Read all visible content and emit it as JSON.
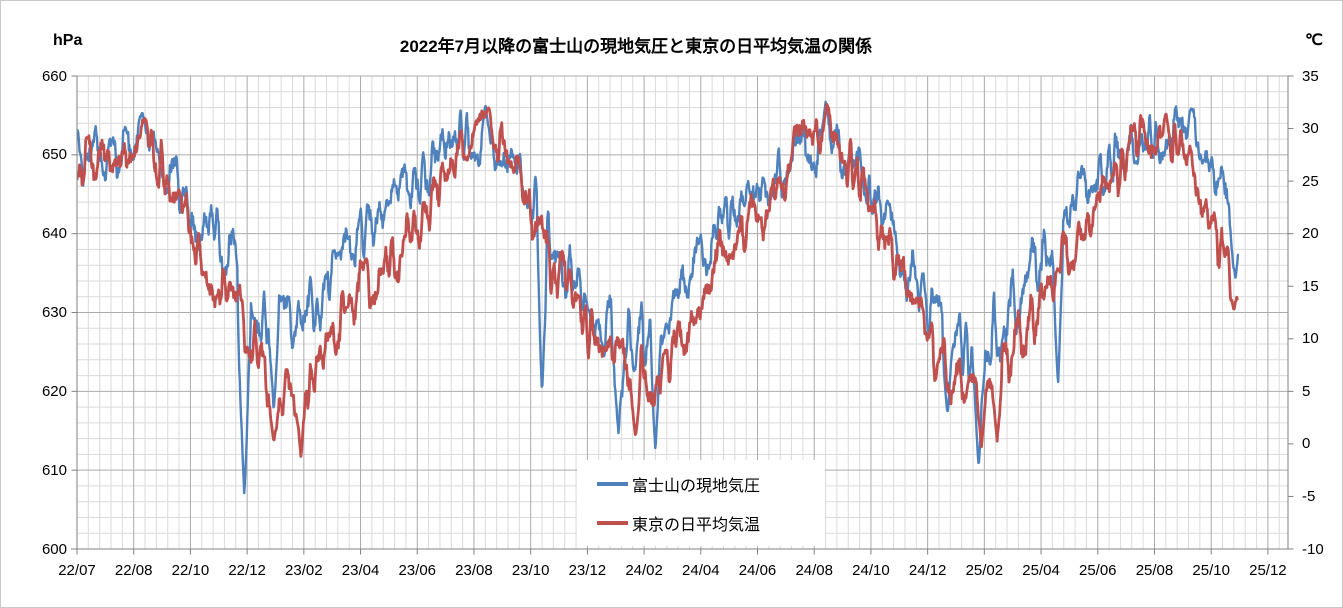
{
  "title": "2022年7月以降の富士山の現地気圧と東京の日平均気温の関係",
  "left_axis": {
    "unit": "hPa",
    "tick_labels": [
      "660",
      "650",
      "640",
      "630",
      "620",
      "610",
      "600"
    ],
    "min": 600,
    "max": 660,
    "major_step": 10,
    "minor_step": 2
  },
  "right_axis": {
    "unit": "℃",
    "tick_labels": [
      "35",
      "30",
      "25",
      "20",
      "15",
      "10",
      "5",
      "0",
      "-5",
      "-10"
    ],
    "min": -10,
    "max": 35,
    "major_step": 5
  },
  "x_axis": {
    "tick_labels": [
      "22/07",
      "22/08",
      "22/10",
      "22/12",
      "23/02",
      "23/04",
      "23/06",
      "23/08",
      "23/10",
      "23/12",
      "24/02",
      "24/04",
      "24/06",
      "24/08",
      "24/10",
      "24/12",
      "25/02",
      "25/04",
      "25/06",
      "25/08",
      "25/10",
      "25/12"
    ],
    "minor_divisions_per_major": 5
  },
  "legend": {
    "items": [
      {
        "label": "富士山の現地気圧",
        "color": "#4F81BD"
      },
      {
        "label": "東京の日平均気温",
        "color": "#C0504D"
      }
    ]
  },
  "colors": {
    "series_pressure": "#4F81BD",
    "series_temperature": "#C0504D",
    "gridline_major": "#ABABAB",
    "gridline_minor": "#DADADA",
    "axis_line": "#808080",
    "text": "#000000",
    "background": "#FFFFFF"
  },
  "chart_data": {
    "type": "line",
    "title": "2022年7月以降の富士山の現地気圧と東京の日平均気温の関係",
    "note": "Daily observations July 2022 through late October 2025; values below are monthly means read from the plot, daily values fluctuate around them with the stated noise amplitude.",
    "months": [
      "2022-07",
      "2022-08",
      "2022-09",
      "2022-10",
      "2022-11",
      "2022-12",
      "2023-01",
      "2023-02",
      "2023-03",
      "2023-04",
      "2023-05",
      "2023-06",
      "2023-07",
      "2023-08",
      "2023-09",
      "2023-10",
      "2023-11",
      "2023-12",
      "2024-01",
      "2024-02",
      "2024-03",
      "2024-04",
      "2024-05",
      "2024-06",
      "2024-07",
      "2024-08",
      "2024-09",
      "2024-10",
      "2024-11",
      "2024-12",
      "2025-01",
      "2025-02",
      "2025-03",
      "2025-04",
      "2025-05",
      "2025-06",
      "2025-07",
      "2025-08",
      "2025-09",
      "2025-10",
      "2025-11"
    ],
    "left_ylim": [
      600,
      660
    ],
    "right_ylim": [
      -10,
      35
    ],
    "grid": "major and minor, both axes",
    "legend_position": "inside lower center",
    "series": [
      {
        "name": "富士山の現地気圧",
        "yaxis": "left",
        "unit": "hPa",
        "color": "#4F81BD",
        "monthly_mean": [
          650,
          650.5,
          646,
          641,
          636,
          628,
          629,
          631,
          637,
          641,
          645,
          649,
          652,
          652,
          649,
          641,
          634,
          629,
          626,
          628,
          633,
          640,
          644,
          647,
          650,
          651,
          648,
          642,
          634,
          627,
          626,
          628,
          634,
          640,
          645,
          649,
          651,
          653,
          652,
          647,
          636
        ],
        "daily_noise_amp": 4.0,
        "overall_max": 657,
        "overall_min": 606,
        "notable_lows": [
          {
            "month_index": 4,
            "frac": 0.9,
            "value": 606,
            "width": 0.12
          },
          {
            "month_index": 5,
            "frac": 0.94,
            "value": 617
          },
          {
            "month_index": 15,
            "frac": 0.4,
            "value": 619
          },
          {
            "month_index": 18,
            "frac": 0.1,
            "value": 614
          },
          {
            "month_index": 19,
            "frac": 0.4,
            "value": 612
          },
          {
            "month_index": 29,
            "frac": 0.7,
            "value": 617
          },
          {
            "month_index": 30,
            "frac": 0.8,
            "value": 610,
            "width": 0.11
          },
          {
            "month_index": 33,
            "frac": 0.6,
            "value": 620
          },
          {
            "month_index": 39,
            "frac": 0.86,
            "value": 634,
            "width": 0.11
          }
        ],
        "notable_highs": [
          {
            "month_index": 1,
            "frac": 0.3,
            "value": 655.5
          },
          {
            "month_index": 13,
            "frac": 0.4,
            "value": 656.5
          },
          {
            "month_index": 25,
            "frac": 0.4,
            "value": 657
          },
          {
            "month_index": 38,
            "frac": 0.3,
            "value": 656
          }
        ],
        "data_end": {
          "month_index": 39,
          "frac": 0.95
        }
      },
      {
        "name": "東京の日平均気温",
        "yaxis": "right",
        "unit": "℃",
        "color": "#C0504D",
        "monthly_mean": [
          27,
          28,
          24,
          17,
          14,
          7,
          5,
          7,
          13,
          16,
          19,
          23,
          29,
          30,
          26,
          18,
          14,
          9,
          6,
          7,
          10,
          17,
          20,
          23,
          29,
          29,
          26,
          19,
          13,
          7,
          5,
          6,
          11,
          16,
          20,
          25,
          29,
          29,
          26,
          17,
          13
        ],
        "daily_noise_amp": 2.5,
        "overall_max": 32.5,
        "overall_min": -2,
        "notable_lows": [
          {
            "month_index": 5,
            "frac": 0.94,
            "value": 0
          },
          {
            "month_index": 6,
            "frac": 0.9,
            "value": -1.5
          },
          {
            "month_index": 18,
            "frac": 0.7,
            "value": 0.5
          },
          {
            "month_index": 30,
            "frac": 0.9,
            "value": -0.5
          },
          {
            "month_index": 31,
            "frac": 0.45,
            "value": 0
          },
          {
            "month_index": 39,
            "frac": 0.8,
            "value": 12.5
          }
        ],
        "notable_highs": [
          {
            "month_index": 1,
            "frac": 0.4,
            "value": 31
          },
          {
            "month_index": 13,
            "frac": 0.5,
            "value": 32
          },
          {
            "month_index": 25,
            "frac": 0.45,
            "value": 32.5
          },
          {
            "month_index": 37,
            "frac": 0.4,
            "value": 31.5
          }
        ],
        "data_end": {
          "month_index": 39,
          "frac": 0.93
        }
      }
    ]
  }
}
